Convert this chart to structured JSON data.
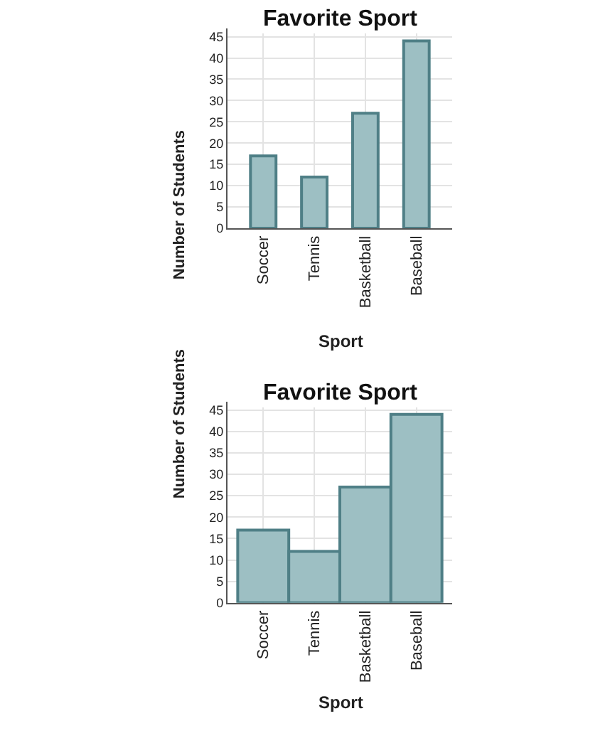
{
  "chart_data": [
    {
      "type": "bar",
      "title": "Favorite Sport",
      "xlabel": "Sport",
      "ylabel": "Number of Students",
      "categories": [
        "Soccer",
        "Tennis",
        "Basketball",
        "Baseball"
      ],
      "values": [
        17,
        12,
        27,
        44
      ],
      "color": "#9dbfc3",
      "ylim": [
        0,
        47
      ],
      "yticks": [
        0,
        5,
        10,
        15,
        20,
        25,
        30,
        35,
        40,
        45
      ],
      "grid": true
    },
    {
      "type": "bar",
      "title": "Favorite Sport",
      "xlabel": "Sport",
      "ylabel": "Number of Students",
      "categories": [
        "Soccer",
        "Tennis",
        "Basketball",
        "Baseball"
      ],
      "values": [
        17,
        12,
        27,
        44
      ],
      "color": "#9dbfc3",
      "ylim": [
        0,
        47
      ],
      "yticks": [
        0,
        5,
        10,
        15,
        20,
        25,
        30,
        35,
        40,
        45
      ],
      "grid": true
    }
  ]
}
